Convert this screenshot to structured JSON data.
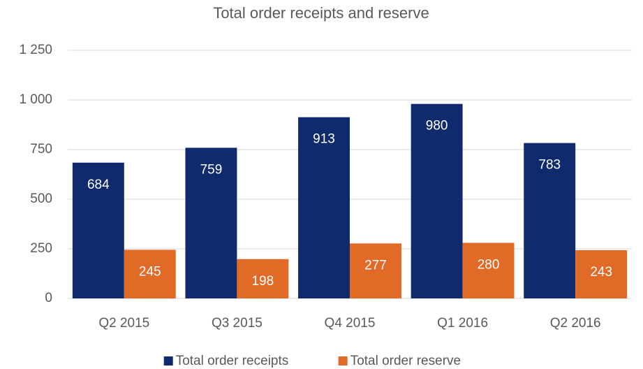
{
  "chart_data": {
    "type": "bar",
    "title": "Total order receipts and reserve",
    "categories": [
      "Q2 2015",
      "Q3 2015",
      "Q4 2015",
      "Q1 2016",
      "Q2 2016"
    ],
    "series": [
      {
        "name": "Total order receipts",
        "color": "#102a6e",
        "values": [
          684,
          759,
          913,
          980,
          783
        ]
      },
      {
        "name": "Total order reserve",
        "color": "#e06a26",
        "values": [
          245,
          198,
          277,
          280,
          243
        ]
      }
    ],
    "ylim": [
      0,
      1250
    ],
    "yticks": [
      0,
      250,
      500,
      750,
      {
        "value": 1000,
        "label": "1 000"
      },
      {
        "value": 1250,
        "label": "1 250"
      }
    ],
    "grid": true,
    "legend": "bottom"
  }
}
